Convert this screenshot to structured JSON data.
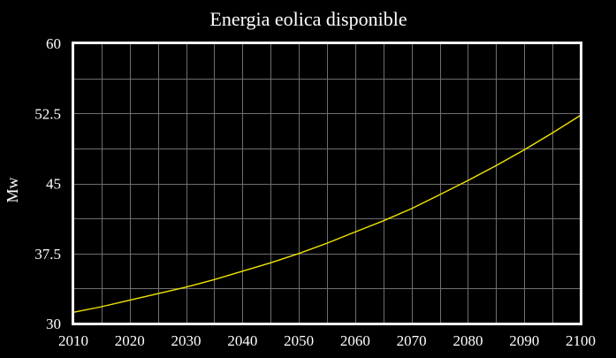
{
  "chart_data": {
    "type": "line",
    "title": "Energia eolica disponible",
    "xlabel": "",
    "ylabel": "Mw",
    "xlim": [
      2010,
      2100
    ],
    "ylim": [
      30,
      60
    ],
    "x_ticks": [
      2010,
      2020,
      2030,
      2040,
      2050,
      2060,
      2070,
      2080,
      2090,
      2100
    ],
    "y_ticks": [
      30,
      37.5,
      45,
      52.5,
      60
    ],
    "y_tick_labels": [
      "30",
      "37.5",
      "45",
      "52.5",
      "60"
    ],
    "grid": true,
    "colors": {
      "background": "#000000",
      "frame": "#ffffff",
      "grid": "#6e6e6e",
      "line": "#f2e600",
      "text": "#ffffff"
    },
    "series": [
      {
        "x": [
          2010,
          2015,
          2020,
          2025,
          2030,
          2035,
          2040,
          2045,
          2050,
          2055,
          2060,
          2065,
          2070,
          2075,
          2080,
          2085,
          2090,
          2095,
          2100
        ],
        "values": [
          31.2,
          31.8,
          32.5,
          33.2,
          33.9,
          34.7,
          35.6,
          36.5,
          37.5,
          38.6,
          39.8,
          41.0,
          42.3,
          43.8,
          45.3,
          46.9,
          48.6,
          50.4,
          52.3
        ]
      }
    ]
  }
}
